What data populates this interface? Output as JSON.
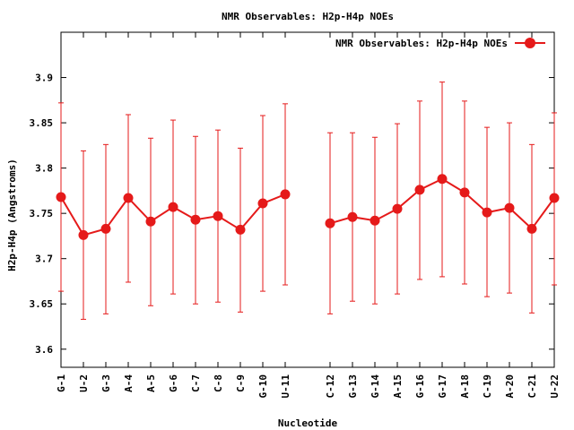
{
  "chart_data": {
    "type": "line",
    "title": "NMR Observables: H2p-H4p NOEs",
    "xlabel": "Nucleotide",
    "ylabel": "H2p-H4p (Angstroms)",
    "ylim": [
      3.58,
      3.95
    ],
    "yticks": [
      "3.6",
      "3.65",
      "3.7",
      "3.75",
      "3.8",
      "3.85",
      "3.9"
    ],
    "grid": false,
    "legend_position": "top-right",
    "color": "#e51a1a",
    "series": [
      {
        "name": "NMR Observables: H2p-H4p NOEs",
        "segments": [
          {
            "categories": [
              "G-1",
              "U-2",
              "G-3",
              "A-4",
              "A-5",
              "G-6",
              "C-7",
              "C-8",
              "C-9",
              "G-10",
              "U-11"
            ],
            "x": [
              1,
              2,
              3,
              4,
              5,
              6,
              7,
              8,
              9,
              10,
              11
            ],
            "values": [
              3.768,
              3.726,
              3.733,
              3.767,
              3.741,
              3.757,
              3.743,
              3.747,
              3.732,
              3.761,
              3.771
            ],
            "err_low": [
              3.664,
              3.633,
              3.639,
              3.674,
              3.648,
              3.661,
              3.65,
              3.652,
              3.641,
              3.664,
              3.671
            ],
            "err_high": [
              3.872,
              3.819,
              3.826,
              3.859,
              3.833,
              3.853,
              3.835,
              3.842,
              3.822,
              3.858,
              3.871
            ]
          },
          {
            "categories": [
              "C-12",
              "G-13",
              "G-14",
              "A-15",
              "G-16",
              "G-17",
              "A-18",
              "C-19",
              "A-20",
              "C-21",
              "U-22"
            ],
            "x": [
              13,
              14,
              15,
              16,
              17,
              18,
              19,
              20,
              21,
              22,
              23
            ],
            "values": [
              3.739,
              3.746,
              3.742,
              3.755,
              3.776,
              3.788,
              3.773,
              3.751,
              3.756,
              3.733,
              3.767
            ],
            "err_low": [
              3.639,
              3.653,
              3.65,
              3.661,
              3.677,
              3.68,
              3.672,
              3.658,
              3.662,
              3.64,
              3.671
            ],
            "err_high": [
              3.839,
              3.839,
              3.834,
              3.849,
              3.874,
              3.895,
              3.874,
              3.845,
              3.85,
              3.826,
              3.861
            ]
          }
        ]
      }
    ]
  }
}
